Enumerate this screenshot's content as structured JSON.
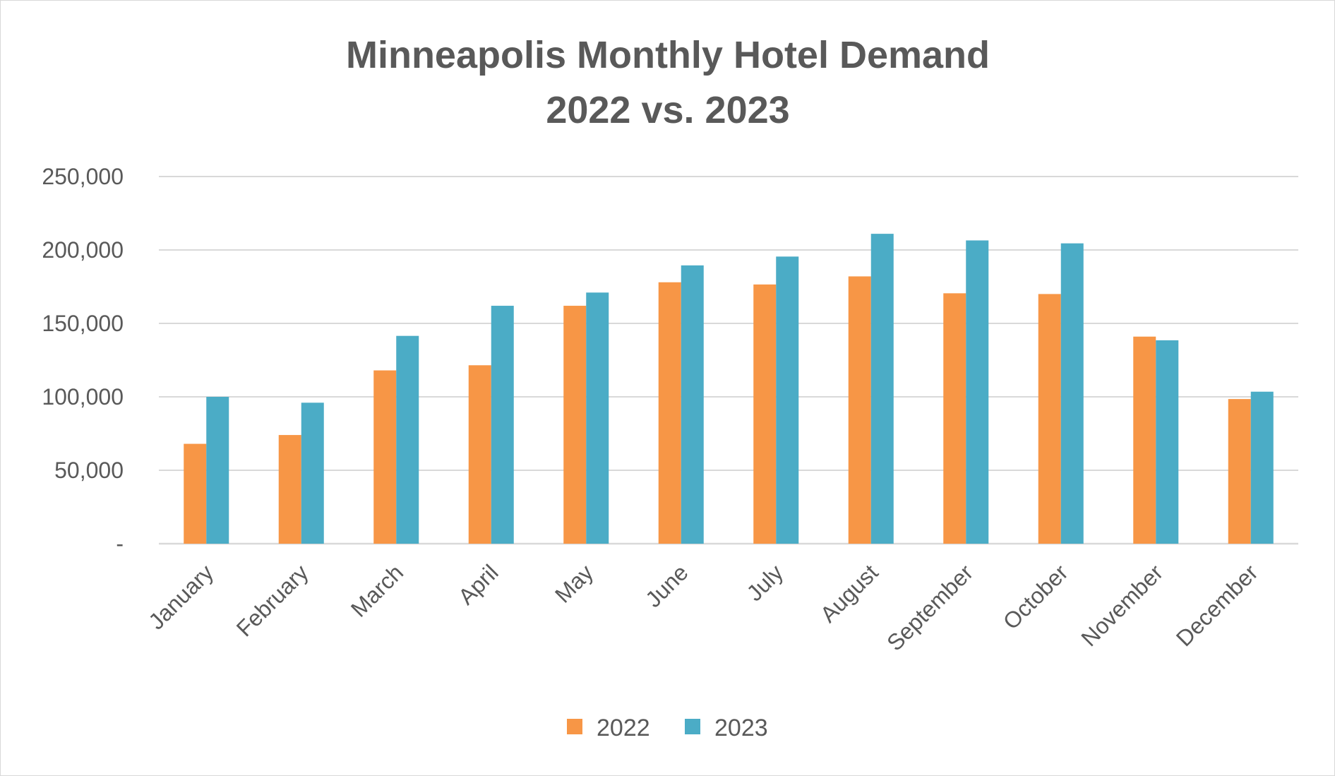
{
  "chart_data": {
    "type": "bar",
    "title": "Minneapolis Monthly Hotel Demand",
    "subtitle": "2022 vs. 2023",
    "xlabel": "",
    "ylabel": "",
    "ylim": [
      0,
      250000
    ],
    "y_ticks": [
      0,
      50000,
      100000,
      150000,
      200000,
      250000
    ],
    "y_tick_labels": [
      "-",
      "50,000",
      "100,000",
      "150,000",
      "200,000",
      "250,000"
    ],
    "grid": true,
    "legend_position": "bottom",
    "categories": [
      "January",
      "February",
      "March",
      "April",
      "May",
      "June",
      "July",
      "August",
      "September",
      "October",
      "November",
      "December"
    ],
    "series": [
      {
        "name": "2022",
        "color": "#f79646",
        "values": [
          68000,
          74000,
          118000,
          121500,
          162000,
          178000,
          176500,
          182000,
          170500,
          170000,
          141000,
          98500
        ]
      },
      {
        "name": "2023",
        "color": "#4bacc6",
        "values": [
          100000,
          96000,
          141500,
          162000,
          171000,
          189500,
          195500,
          211000,
          206500,
          204500,
          138500,
          103500
        ]
      }
    ]
  }
}
